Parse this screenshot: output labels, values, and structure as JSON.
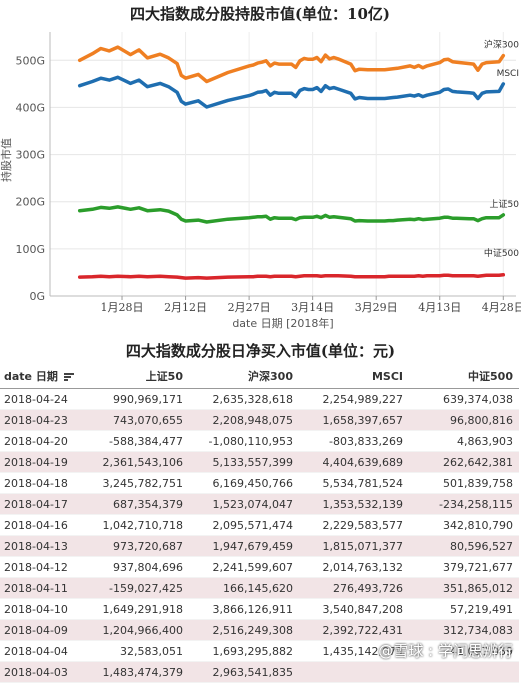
{
  "chart_data": {
    "type": "line",
    "title": "四大指数成分股持股市值(单位：10亿)",
    "xlabel": "date 日期 [2018年]",
    "ylabel": "持股市值",
    "ylim": [
      0,
      560
    ],
    "y_ticks": [
      "0G",
      "100G",
      "200G",
      "300G",
      "400G",
      "500G"
    ],
    "y_tick_values": [
      0,
      100,
      200,
      300,
      400,
      500
    ],
    "x_ticks": [
      "1月28日",
      "2月12日",
      "2月27日",
      "3月14日",
      "3月29日",
      "4月13日",
      "4月28日"
    ],
    "x_tick_days": [
      27,
      42,
      57,
      72,
      87,
      102,
      117
    ],
    "x_range_days": [
      10,
      120
    ],
    "grid": true,
    "series": [
      {
        "name": "沪深300",
        "color": "#ef7f22",
        "x_days": [
          17,
          20,
          22,
          24,
          26,
          29,
          31,
          33,
          36,
          38,
          40,
          41,
          42,
          45,
          47,
          52,
          57,
          58,
          59,
          60,
          61,
          62,
          63,
          64,
          67,
          68,
          69,
          70,
          71,
          72,
          73,
          74,
          75,
          76,
          77,
          78,
          81,
          82,
          83,
          85,
          88,
          89,
          90,
          91,
          92,
          95,
          96,
          97,
          98,
          99,
          102,
          103,
          104,
          105,
          106,
          109,
          110,
          111,
          112,
          113,
          116,
          117
        ],
        "values": [
          500,
          514,
          525,
          520,
          528,
          512,
          522,
          505,
          513,
          505,
          493,
          468,
          462,
          470,
          455,
          474,
          488,
          490,
          494,
          496,
          499,
          488,
          494,
          492,
          492,
          485,
          499,
          504,
          502,
          502,
          506,
          497,
          511,
          503,
          506,
          503,
          492,
          478,
          481,
          480,
          480,
          480,
          481,
          482,
          483,
          488,
          485,
          489,
          484,
          488,
          495,
          501,
          502,
          497,
          496,
          493,
          492,
          479,
          492,
          495,
          497,
          510
        ]
      },
      {
        "name": "MSCI",
        "color": "#1f6eb0",
        "x_days": [
          17,
          20,
          22,
          24,
          26,
          29,
          31,
          33,
          36,
          38,
          40,
          41,
          42,
          45,
          47,
          52,
          57,
          58,
          59,
          60,
          61,
          62,
          63,
          64,
          67,
          68,
          69,
          70,
          71,
          72,
          73,
          74,
          75,
          76,
          77,
          78,
          81,
          82,
          83,
          85,
          88,
          89,
          90,
          91,
          92,
          95,
          96,
          97,
          98,
          99,
          102,
          103,
          104,
          105,
          106,
          109,
          110,
          111,
          112,
          113,
          116,
          117
        ],
        "values": [
          446,
          455,
          462,
          458,
          464,
          451,
          458,
          444,
          451,
          444,
          432,
          413,
          407,
          414,
          401,
          415,
          425,
          428,
          432,
          433,
          436,
          426,
          432,
          430,
          430,
          423,
          436,
          440,
          438,
          438,
          442,
          434,
          446,
          440,
          442,
          439,
          430,
          418,
          421,
          419,
          419,
          419,
          420,
          421,
          422,
          426,
          424,
          427,
          423,
          426,
          432,
          438,
          439,
          434,
          433,
          431,
          430,
          419,
          430,
          433,
          434,
          450
        ]
      },
      {
        "name": "上证50",
        "color": "#2b9d2b",
        "x_days": [
          17,
          20,
          22,
          24,
          26,
          29,
          31,
          33,
          36,
          38,
          40,
          41,
          42,
          45,
          47,
          52,
          57,
          58,
          59,
          60,
          61,
          62,
          63,
          64,
          67,
          68,
          69,
          70,
          71,
          72,
          73,
          74,
          75,
          76,
          77,
          78,
          81,
          82,
          83,
          85,
          88,
          89,
          90,
          91,
          92,
          95,
          96,
          97,
          98,
          99,
          102,
          103,
          104,
          105,
          106,
          109,
          110,
          111,
          112,
          113,
          116,
          117
        ],
        "values": [
          181,
          184,
          188,
          186,
          189,
          184,
          187,
          181,
          183,
          180,
          172,
          163,
          159,
          161,
          157,
          163,
          166,
          167,
          168,
          168,
          169,
          163,
          166,
          165,
          165,
          162,
          166,
          167,
          167,
          167,
          169,
          166,
          171,
          167,
          168,
          167,
          164,
          159,
          160,
          159,
          159,
          159,
          160,
          160,
          161,
          163,
          162,
          164,
          162,
          163,
          165,
          167,
          167,
          165,
          165,
          164,
          164,
          160,
          164,
          166,
          166,
          172
        ]
      },
      {
        "name": "中证500",
        "color": "#d9262b",
        "x_days": [
          17,
          20,
          22,
          24,
          26,
          29,
          31,
          33,
          36,
          38,
          40,
          41,
          42,
          45,
          47,
          52,
          57,
          58,
          59,
          60,
          61,
          62,
          63,
          64,
          67,
          68,
          69,
          70,
          71,
          72,
          73,
          74,
          75,
          76,
          77,
          78,
          81,
          82,
          83,
          85,
          88,
          89,
          90,
          91,
          92,
          95,
          96,
          97,
          98,
          99,
          102,
          103,
          104,
          105,
          106,
          109,
          110,
          111,
          112,
          113,
          116,
          117
        ],
        "values": [
          40,
          41,
          42,
          41,
          42,
          41,
          42,
          41,
          42,
          41,
          40,
          39,
          38,
          39,
          38,
          40,
          41,
          41,
          42,
          42,
          42,
          41,
          42,
          42,
          42,
          41,
          42,
          43,
          43,
          43,
          43,
          42,
          43,
          43,
          43,
          43,
          42,
          41,
          41,
          41,
          41,
          41,
          42,
          42,
          42,
          42,
          42,
          43,
          42,
          43,
          43,
          44,
          44,
          43,
          43,
          43,
          43,
          42,
          43,
          44,
          44,
          45
        ]
      }
    ]
  },
  "table": {
    "title": "四大指数成分股日净买入市值(单位：元)",
    "headers": [
      "date 日期",
      "上证50",
      "沪深300",
      "MSCI",
      "中证500"
    ],
    "rows": [
      [
        "2018-04-24",
        "990,969,171",
        "2,635,328,618",
        "2,254,989,227",
        "639,374,038"
      ],
      [
        "2018-04-23",
        "743,070,655",
        "2,208,948,075",
        "1,658,397,657",
        "96,800,816"
      ],
      [
        "2018-04-20",
        "-588,384,477",
        "-1,080,110,953",
        "-803,833,269",
        "4,863,903"
      ],
      [
        "2018-04-19",
        "2,361,543,106",
        "5,133,557,399",
        "4,404,639,689",
        "262,642,381"
      ],
      [
        "2018-04-18",
        "3,245,782,751",
        "6,169,450,766",
        "5,534,781,524",
        "501,839,758"
      ],
      [
        "2018-04-17",
        "687,354,379",
        "1,523,074,047",
        "1,353,532,139",
        "-234,258,115"
      ],
      [
        "2018-04-16",
        "1,042,710,718",
        "2,095,571,474",
        "2,229,583,577",
        "342,810,790"
      ],
      [
        "2018-04-13",
        "973,720,687",
        "1,947,679,459",
        "1,815,071,377",
        "80,596,527"
      ],
      [
        "2018-04-12",
        "937,804,696",
        "2,241,599,607",
        "2,014,763,132",
        "379,721,677"
      ],
      [
        "2018-04-11",
        "-159,027,425",
        "166,145,620",
        "276,493,726",
        "351,865,012"
      ],
      [
        "2018-04-10",
        "1,649,291,918",
        "3,866,126,911",
        "3,540,847,208",
        "57,219,491"
      ],
      [
        "2018-04-09",
        "1,204,966,400",
        "2,516,249,308",
        "2,392,722,431",
        "312,734,083"
      ],
      [
        "2018-04-04",
        "32,583,051",
        "1,693,295,882",
        "1,435,142,079",
        "-41,097,039"
      ],
      [
        "2018-04-03",
        "1,483,474,379",
        "2,963,541,835",
        "",
        ""
      ]
    ]
  },
  "watermark": "@雪球 : 学问思辨行"
}
